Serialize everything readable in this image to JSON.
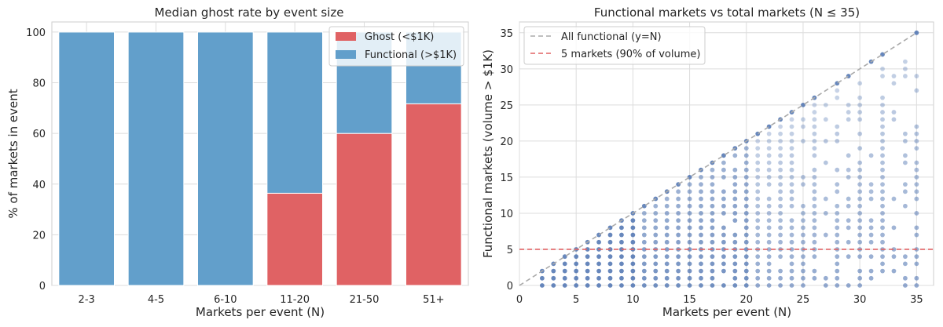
{
  "chart_data": [
    {
      "type": "bar",
      "stacked": true,
      "title": "Median ghost rate by event size",
      "xlabel": "Markets per event (N)",
      "ylabel": "% of markets in event",
      "ylim": [
        0,
        104
      ],
      "yticks": [
        0,
        20,
        40,
        60,
        80,
        100
      ],
      "categories": [
        "2-3",
        "4-5",
        "6-10",
        "11-20",
        "21-50",
        "51+"
      ],
      "series": [
        {
          "name": "Ghost (<$1K)",
          "color": "#e06264",
          "values": [
            0,
            0,
            0,
            36.4,
            60.0,
            71.7
          ]
        },
        {
          "name": "Functional (>$1K)",
          "color": "#629fcb",
          "values": [
            100,
            100,
            100,
            63.6,
            40.0,
            28.3
          ]
        }
      ],
      "legend": {
        "location": "top-right",
        "entries": [
          "Ghost (<$1K)",
          "Functional (>$1K)"
        ]
      }
    },
    {
      "type": "scatter",
      "title": "Functional markets vs total markets (N ≤ 35)",
      "xlabel": "Markets per event (N)",
      "ylabel": "Functional markets (volume > $1K)",
      "xlim": [
        0,
        36.5
      ],
      "ylim": [
        0,
        36.5
      ],
      "xticks": [
        0,
        5,
        10,
        15,
        20,
        25,
        30,
        35
      ],
      "yticks": [
        0,
        5,
        10,
        15,
        20,
        25,
        30,
        35
      ],
      "point_color": "#4c72b0",
      "note": "observed (N, functional) pairs; each point drawn semi-transparent, darker where more events overlap",
      "x_range": [
        2,
        35
      ],
      "max_functional": "y = N",
      "sparse_columns": [
        27,
        29,
        31,
        33,
        34
      ],
      "reference_lines": [
        {
          "label": "All functional (y=N)",
          "type": "diagonal",
          "color": "#aaaaaa"
        },
        {
          "label": "5 markets (90% of volume)",
          "type": "horizontal",
          "y": 5,
          "color": "#e06264"
        }
      ],
      "legend": {
        "location": "top-left",
        "entries": [
          "All functional (y=N)",
          "5 markets (90% of volume)"
        ]
      }
    }
  ]
}
